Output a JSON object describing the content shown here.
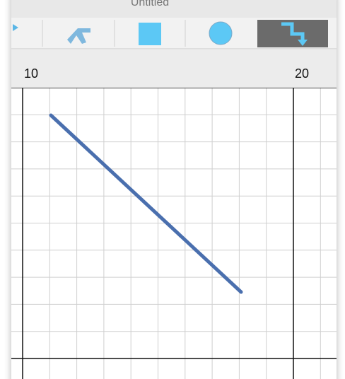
{
  "window": {
    "title": "Untitled"
  },
  "ruler": {
    "labels": [
      "10",
      "20"
    ]
  }
}
